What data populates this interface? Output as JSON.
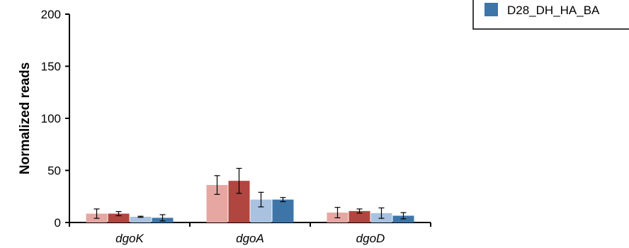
{
  "chart_data": {
    "type": "bar",
    "ylabel": "Normalized reads",
    "ylim": [
      0,
      200
    ],
    "yticks": [
      "0",
      "50",
      "100",
      "150",
      "200"
    ],
    "grid": false,
    "legend_position": "top-right",
    "categories": [
      "dgoK",
      "dgoA",
      "dgoD"
    ],
    "series": [
      {
        "values": [
          8.5,
          36,
          9.5
        ],
        "errors": [
          4.5,
          9,
          5
        ],
        "color": "#e6a7a3"
      },
      {
        "values": [
          8.5,
          40,
          11
        ],
        "errors": [
          2,
          12,
          2
        ],
        "color": "#b0463f"
      },
      {
        "values": [
          5.5,
          22,
          9
        ],
        "errors": [
          0.5,
          7,
          5
        ],
        "color": "#a8c2e0"
      },
      {
        "name": "D28_DH_HA_BA",
        "values": [
          4.5,
          22,
          6.5
        ],
        "errors": [
          3,
          2,
          3
        ],
        "color": "#3e75a8"
      }
    ]
  }
}
